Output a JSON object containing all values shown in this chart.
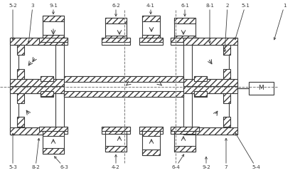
{
  "bg_color": "#ffffff",
  "lc": "#3a3a3a",
  "lw": 0.8,
  "fig_width": 4.22,
  "fig_height": 2.43,
  "dpi": 100
}
